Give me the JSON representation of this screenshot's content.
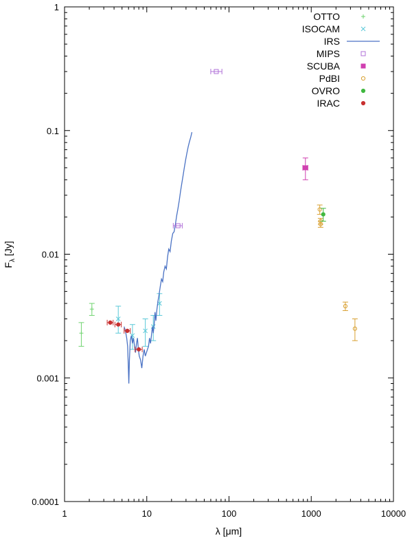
{
  "chart_data": {
    "type": "scatter",
    "xscale": "log",
    "yscale": "log",
    "xlim": [
      1,
      10000
    ],
    "ylim": [
      0.0001,
      1
    ],
    "xlabel": "λ [μm]",
    "ylabel": "F",
    "ylabel_sub": "λ",
    "ylabel_unit": " [Jy]",
    "xticks": [
      {
        "value": 1,
        "label": "1"
      },
      {
        "value": 10,
        "label": "10"
      },
      {
        "value": 100,
        "label": "100"
      },
      {
        "value": 1000,
        "label": "1000"
      },
      {
        "value": 10000,
        "label": "10000"
      }
    ],
    "yticks": [
      {
        "value": 0.0001,
        "label": "0.0001"
      },
      {
        "value": 0.001,
        "label": "0.001"
      },
      {
        "value": 0.01,
        "label": "0.01"
      },
      {
        "value": 0.1,
        "label": "0.1"
      },
      {
        "value": 1,
        "label": "1"
      }
    ],
    "legend_position": "top-right",
    "series": [
      {
        "name": "OTTO",
        "marker": "plus",
        "color": "#6fd36f",
        "points": [
          {
            "x": 1.6,
            "y": 0.0023,
            "ylo": 0.0018,
            "yhi": 0.0028
          },
          {
            "x": 2.15,
            "y": 0.0036,
            "ylo": 0.0032,
            "yhi": 0.004
          }
        ]
      },
      {
        "name": "ISOCAM",
        "marker": "cross",
        "color": "#5ac8d8",
        "points": [
          {
            "x": 4.5,
            "y": 0.003,
            "ylo": 0.0023,
            "yhi": 0.0038
          },
          {
            "x": 6.7,
            "y": 0.0022,
            "ylo": 0.0017,
            "yhi": 0.0027
          },
          {
            "x": 9.6,
            "y": 0.0024,
            "ylo": 0.0018,
            "yhi": 0.003
          },
          {
            "x": 12.0,
            "y": 0.0026,
            "ylo": 0.002,
            "yhi": 0.0032
          },
          {
            "x": 14.3,
            "y": 0.004,
            "ylo": 0.0032,
            "yhi": 0.0048
          }
        ]
      },
      {
        "name": "IRS",
        "marker": "line",
        "color": "#4a72c4",
        "line": [
          [
            5.3,
            0.0026
          ],
          [
            5.5,
            0.0024
          ],
          [
            5.7,
            0.0021
          ],
          [
            5.85,
            0.0018
          ],
          [
            5.95,
            0.0013
          ],
          [
            6.05,
            0.0009
          ],
          [
            6.15,
            0.0014
          ],
          [
            6.3,
            0.002
          ],
          [
            6.5,
            0.0022
          ],
          [
            6.7,
            0.0019
          ],
          [
            6.9,
            0.0021
          ],
          [
            7.1,
            0.0018
          ],
          [
            7.3,
            0.0016
          ],
          [
            7.5,
            0.0019
          ],
          [
            7.7,
            0.0021
          ],
          [
            7.9,
            0.0017
          ],
          [
            8.1,
            0.0015
          ],
          [
            8.4,
            0.0014
          ],
          [
            8.7,
            0.0012
          ],
          [
            9.0,
            0.0015
          ],
          [
            9.3,
            0.0017
          ],
          [
            9.6,
            0.0015
          ],
          [
            9.9,
            0.0016
          ],
          [
            10.2,
            0.0017
          ],
          [
            10.5,
            0.0018
          ],
          [
            10.8,
            0.0021
          ],
          [
            11.1,
            0.0019
          ],
          [
            11.4,
            0.0022
          ],
          [
            11.7,
            0.0026
          ],
          [
            12.0,
            0.0023
          ],
          [
            12.3,
            0.0027
          ],
          [
            12.6,
            0.0034
          ],
          [
            12.9,
            0.0029
          ],
          [
            13.3,
            0.0036
          ],
          [
            13.7,
            0.0042
          ],
          [
            14.1,
            0.0047
          ],
          [
            14.6,
            0.0055
          ],
          [
            15.1,
            0.0063
          ],
          [
            15.6,
            0.006
          ],
          [
            16.1,
            0.0072
          ],
          [
            16.7,
            0.008
          ],
          [
            17.3,
            0.0076
          ],
          [
            17.9,
            0.0095
          ],
          [
            18.5,
            0.011
          ],
          [
            19.2,
            0.0105
          ],
          [
            19.9,
            0.0128
          ],
          [
            20.7,
            0.0147
          ],
          [
            21.5,
            0.0152
          ],
          [
            22.3,
            0.0175
          ],
          [
            23.1,
            0.0205
          ],
          [
            23.9,
            0.0232
          ],
          [
            24.8,
            0.027
          ],
          [
            25.7,
            0.032
          ],
          [
            26.6,
            0.037
          ],
          [
            27.6,
            0.043
          ],
          [
            28.6,
            0.05
          ],
          [
            29.7,
            0.058
          ],
          [
            30.8,
            0.066
          ],
          [
            31.9,
            0.074
          ],
          [
            33.0,
            0.081
          ],
          [
            34.2,
            0.088
          ],
          [
            35.4,
            0.097
          ]
        ]
      },
      {
        "name": "MIPS",
        "marker": "open-square",
        "color": "#b070d8",
        "points": [
          {
            "x": 24,
            "y": 0.017,
            "xlo": 21,
            "xhi": 27
          },
          {
            "x": 70,
            "y": 0.3,
            "xlo": 60,
            "xhi": 82
          }
        ]
      },
      {
        "name": "SCUBA",
        "marker": "filled-square",
        "color": "#d040b0",
        "points": [
          {
            "x": 850,
            "y": 0.05,
            "ylo": 0.04,
            "yhi": 0.06,
            "xlo": 790,
            "xhi": 910
          }
        ]
      },
      {
        "name": "PdBI",
        "marker": "open-circle",
        "color": "#d8a030",
        "points": [
          {
            "x": 1270,
            "y": 0.023,
            "ylo": 0.021,
            "yhi": 0.025
          },
          {
            "x": 1300,
            "y": 0.0185,
            "ylo": 0.0175,
            "yhi": 0.0195
          },
          {
            "x": 1300,
            "y": 0.0175,
            "ylo": 0.0165,
            "yhi": 0.0185
          },
          {
            "x": 2600,
            "y": 0.0038,
            "ylo": 0.0035,
            "yhi": 0.0041
          },
          {
            "x": 3400,
            "y": 0.0025,
            "ylo": 0.002,
            "yhi": 0.003
          }
        ]
      },
      {
        "name": "OVRO",
        "marker": "filled-circle",
        "color": "#40b840",
        "points": [
          {
            "x": 1400,
            "y": 0.021,
            "ylo": 0.0185,
            "yhi": 0.0235
          }
        ]
      },
      {
        "name": "IRAC",
        "marker": "filled-circle",
        "color": "#c83030",
        "points": [
          {
            "x": 3.6,
            "y": 0.0028,
            "xlo": 3.3,
            "xhi": 3.9
          },
          {
            "x": 4.5,
            "y": 0.0027,
            "xlo": 4.1,
            "xhi": 4.9
          },
          {
            "x": 5.8,
            "y": 0.0024,
            "xlo": 5.3,
            "xhi": 6.3
          },
          {
            "x": 8.0,
            "y": 0.0017,
            "xlo": 7.2,
            "xhi": 8.8
          }
        ]
      }
    ]
  }
}
